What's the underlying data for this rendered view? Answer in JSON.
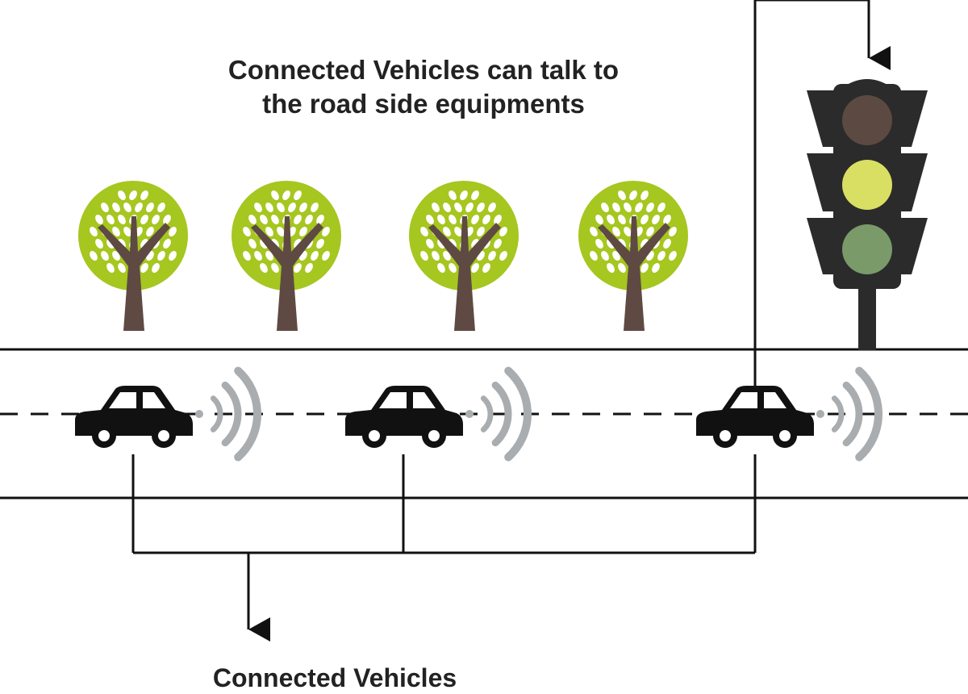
{
  "labels": {
    "top_line1": "Connected Vehicles can talk to",
    "top_line2": "the road side equipments",
    "bottom": "Connected Vehicles"
  },
  "colors": {
    "tree_canopy": "#a6c620",
    "tree_trunk": "#5e4a42",
    "car": "#111111",
    "signal_waves": "#a9adb0",
    "light_housing": "#2b2b2b",
    "light_red_off": "#5c4a42",
    "light_yellow_on": "#d9df63",
    "light_green_off": "#7a9a6a",
    "lines": "#111111"
  },
  "icons": {
    "tree": "tree-icon",
    "car": "car-icon",
    "signal": "wireless-signal-icon",
    "traffic_light": "traffic-light-icon"
  },
  "counts": {
    "trees": 4,
    "cars": 3
  }
}
